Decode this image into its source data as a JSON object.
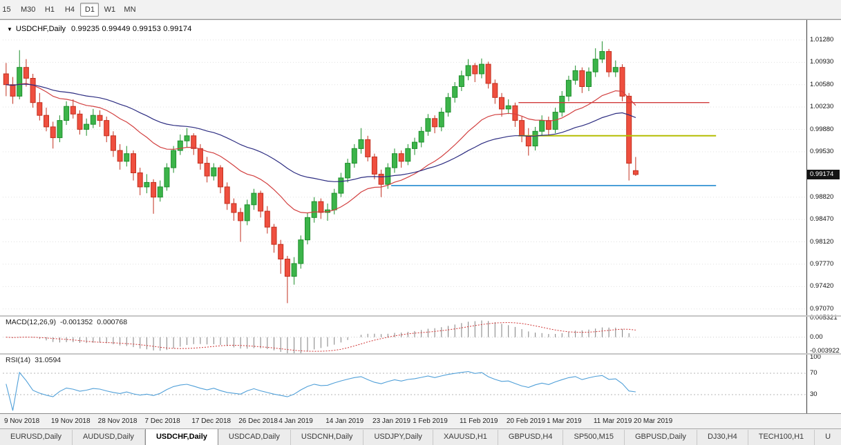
{
  "toolbar": {
    "timeframes": [
      "15",
      "M30",
      "H1",
      "H4",
      "D1",
      "W1",
      "MN"
    ],
    "active_timeframe": "D1"
  },
  "chart": {
    "title_symbol": "USDCHF,Daily",
    "ohlc_text": "0.99235 0.99449 0.99153 0.99174",
    "price_axis": {
      "current": "0.99174",
      "labels": [
        "1.01280",
        "1.00930",
        "1.00580",
        "1.00230",
        "0.99880",
        "0.99530",
        "0.98820",
        "0.98470",
        "0.98120",
        "0.97770",
        "0.97420",
        "0.97070"
      ]
    }
  },
  "chart_data": {
    "type": "candlestick",
    "symbol": "USDCHF",
    "period": "Daily",
    "visible_slots": 120,
    "y_axis": {
      "min": 0.9697,
      "max": 1.0156
    },
    "x_labels": [
      {
        "slot": 0,
        "label": "9 Nov 2018"
      },
      {
        "slot": 7,
        "label": "19 Nov 2018"
      },
      {
        "slot": 14,
        "label": "28 Nov 2018"
      },
      {
        "slot": 21,
        "label": "7 Dec 2018"
      },
      {
        "slot": 28,
        "label": "17 Dec 2018"
      },
      {
        "slot": 35,
        "label": "26 Dec 2018"
      },
      {
        "slot": 41,
        "label": "4 Jan 2019"
      },
      {
        "slot": 48,
        "label": "14 Jan 2019"
      },
      {
        "slot": 55,
        "label": "23 Jan 2019"
      },
      {
        "slot": 61,
        "label": "1 Feb 2019"
      },
      {
        "slot": 68,
        "label": "11 Feb 2019"
      },
      {
        "slot": 75,
        "label": "20 Feb 2019"
      },
      {
        "slot": 81,
        "label": "1 Mar 2019"
      },
      {
        "slot": 88,
        "label": "11 Mar 2019"
      },
      {
        "slot": 94,
        "label": "20 Mar 2019"
      }
    ],
    "ohlc": [
      [
        1.0075,
        1.0092,
        1.004,
        1.0058
      ],
      [
        1.0058,
        1.007,
        1.0028,
        1.004
      ],
      [
        1.004,
        1.0112,
        1.0035,
        1.0085
      ],
      [
        1.0085,
        1.0098,
        1.0055,
        1.0068
      ],
      [
        1.0068,
        1.0075,
        1.0022,
        1.003
      ],
      [
        1.003,
        1.0045,
        1.0002,
        1.001
      ],
      [
        1.001,
        1.0022,
        0.9985,
        0.9992
      ],
      [
        0.9992,
        1.0,
        0.9958,
        0.9975
      ],
      [
        0.9975,
        1.001,
        0.9968,
        1.0002
      ],
      [
        1.0002,
        1.0032,
        0.9995,
        1.0024
      ],
      [
        1.0024,
        1.0035,
        1.0005,
        1.0012
      ],
      [
        1.0012,
        1.0018,
        0.998,
        0.9988
      ],
      [
        0.9988,
        1.0005,
        0.9978,
        0.9996
      ],
      [
        0.9996,
        1.002,
        0.999,
        1.001
      ],
      [
        1.001,
        1.0018,
        0.9992,
        1.0002
      ],
      [
        1.0002,
        1.0008,
        0.9968,
        0.9978
      ],
      [
        0.9978,
        0.9985,
        0.9945,
        0.9955
      ],
      [
        0.9955,
        0.9965,
        0.9925,
        0.9938
      ],
      [
        0.9938,
        0.9962,
        0.993,
        0.995
      ],
      [
        0.995,
        0.9955,
        0.9908,
        0.992
      ],
      [
        0.992,
        0.9928,
        0.9885,
        0.9898
      ],
      [
        0.9898,
        0.9918,
        0.9888,
        0.9905
      ],
      [
        0.9905,
        0.991,
        0.9856,
        0.9882
      ],
      [
        0.9882,
        0.9908,
        0.9875,
        0.9898
      ],
      [
        0.9898,
        0.9935,
        0.9892,
        0.9928
      ],
      [
        0.9928,
        0.9962,
        0.992,
        0.9955
      ],
      [
        0.9955,
        0.998,
        0.9948,
        0.997
      ],
      [
        0.997,
        0.999,
        0.996,
        0.9978
      ],
      [
        0.9978,
        0.9982,
        0.9948,
        0.9958
      ],
      [
        0.9958,
        0.9965,
        0.9925,
        0.9935
      ],
      [
        0.9935,
        0.9945,
        0.9905,
        0.9915
      ],
      [
        0.9915,
        0.9935,
        0.9908,
        0.9928
      ],
      [
        0.9928,
        0.9932,
        0.9888,
        0.9898
      ],
      [
        0.9898,
        0.9905,
        0.9862,
        0.9872
      ],
      [
        0.9872,
        0.988,
        0.9845,
        0.9858
      ],
      [
        0.9858,
        0.9865,
        0.9812,
        0.9845
      ],
      [
        0.9845,
        0.9878,
        0.9838,
        0.987
      ],
      [
        0.987,
        0.9895,
        0.9862,
        0.9888
      ],
      [
        0.9888,
        0.9892,
        0.985,
        0.986
      ],
      [
        0.986,
        0.9868,
        0.9825,
        0.9835
      ],
      [
        0.9835,
        0.984,
        0.9795,
        0.9808
      ],
      [
        0.9808,
        0.9815,
        0.9762,
        0.9785
      ],
      [
        0.9785,
        0.979,
        0.9716,
        0.9758
      ],
      [
        0.9758,
        0.9788,
        0.9745,
        0.9778
      ],
      [
        0.9778,
        0.9822,
        0.977,
        0.9815
      ],
      [
        0.9815,
        0.9858,
        0.9808,
        0.985
      ],
      [
        0.985,
        0.9882,
        0.9842,
        0.9875
      ],
      [
        0.9875,
        0.988,
        0.9848,
        0.9858
      ],
      [
        0.9858,
        0.9872,
        0.9845,
        0.9862
      ],
      [
        0.9862,
        0.9895,
        0.9855,
        0.9888
      ],
      [
        0.9888,
        0.992,
        0.9882,
        0.9912
      ],
      [
        0.9912,
        0.9942,
        0.9905,
        0.9935
      ],
      [
        0.9935,
        0.9965,
        0.9928,
        0.9958
      ],
      [
        0.9958,
        0.999,
        0.995,
        0.9972
      ],
      [
        0.9972,
        0.9978,
        0.9938,
        0.9945
      ],
      [
        0.9945,
        0.995,
        0.991,
        0.9918
      ],
      [
        0.9918,
        0.9925,
        0.9882,
        0.9902
      ],
      [
        0.9902,
        0.9935,
        0.9895,
        0.9928
      ],
      [
        0.9928,
        0.9958,
        0.992,
        0.995
      ],
      [
        0.995,
        0.9955,
        0.9928,
        0.9938
      ],
      [
        0.9938,
        0.9965,
        0.9932,
        0.9958
      ],
      [
        0.9958,
        0.9975,
        0.9948,
        0.9968
      ],
      [
        0.9968,
        0.9992,
        0.996,
        0.9985
      ],
      [
        0.9985,
        1.0012,
        0.9978,
        1.0005
      ],
      [
        1.0005,
        1.001,
        0.9982,
        0.9992
      ],
      [
        0.9992,
        1.0022,
        0.9985,
        1.0015
      ],
      [
        1.0015,
        1.0045,
        1.0008,
        1.0038
      ],
      [
        1.0038,
        1.0062,
        1.003,
        1.0055
      ],
      [
        1.0055,
        1.008,
        1.0048,
        1.0072
      ],
      [
        1.0072,
        1.0098,
        1.0065,
        1.0088
      ],
      [
        1.0088,
        1.0092,
        1.0062,
        1.0075
      ],
      [
        1.0075,
        1.0099,
        1.0068,
        1.009
      ],
      [
        1.009,
        1.0094,
        1.0052,
        1.006
      ],
      [
        1.006,
        1.0066,
        1.0028,
        1.0038
      ],
      [
        1.0038,
        1.0045,
        1.0008,
        1.002
      ],
      [
        1.002,
        1.0035,
        1.0012,
        1.0025
      ],
      [
        1.0025,
        1.003,
        0.9992,
        1.0002
      ],
      [
        1.0002,
        1.0008,
        0.9968,
        0.9978
      ],
      [
        0.9978,
        0.999,
        0.9947,
        0.9962
      ],
      [
        0.9962,
        0.9992,
        0.9955,
        0.9985
      ],
      [
        0.9985,
        1.001,
        0.9978,
        1.0002
      ],
      [
        1.0002,
        1.0008,
        0.9978,
        0.9988
      ],
      [
        0.9988,
        1.0022,
        0.9982,
        1.0015
      ],
      [
        1.0015,
        1.0048,
        1.0008,
        1.004
      ],
      [
        1.004,
        1.0072,
        1.0032,
        1.0065
      ],
      [
        1.0065,
        1.0088,
        1.0058,
        1.008
      ],
      [
        1.008,
        1.0085,
        1.0045,
        1.0055
      ],
      [
        1.0055,
        1.0085,
        1.0048,
        1.0078
      ],
      [
        1.0078,
        1.0115,
        1.007,
        1.0098
      ],
      [
        1.0098,
        1.0126,
        1.0092,
        1.011
      ],
      [
        1.011,
        1.0114,
        1.007,
        1.0078
      ],
      [
        1.0078,
        1.0096,
        1.007,
        1.0085
      ],
      [
        1.0085,
        1.009,
        1.0032,
        1.004
      ],
      [
        1.004,
        1.0045,
        0.9908,
        0.9935
      ],
      [
        0.99235,
        0.99449,
        0.99153,
        0.99174
      ]
    ],
    "overlays": [
      {
        "type": "ema",
        "period": 20,
        "color_key": "ma_fast"
      },
      {
        "type": "ema",
        "period": 45,
        "color_key": "ma_slow"
      }
    ],
    "hlines": [
      {
        "price": 1.003,
        "from": 77,
        "to": 105,
        "color_key": "hline_red",
        "width": 1.4
      },
      {
        "price": 0.9978,
        "from": 77,
        "to": 106,
        "color_key": "hline_yellow",
        "width": 2
      },
      {
        "price": 0.99,
        "from": 58,
        "to": 106,
        "color_key": "hline_blue",
        "width": 2
      }
    ]
  },
  "indicators": {
    "macd": {
      "label": "MACD(12,26,9)",
      "main_value": "-0.001352",
      "signal_value": "0.000768",
      "params": {
        "fast": 12,
        "slow": 26,
        "signal": 9
      },
      "range": [
        -0.0045,
        0.0058
      ],
      "axis": [
        {
          "label": "0.005321",
          "value": 0.005321
        },
        {
          "label": "0.00",
          "value": 0
        },
        {
          "label": "-0.003922",
          "value": -0.003922
        }
      ]
    },
    "rsi": {
      "label": "RSI(14)",
      "value": "31.0594",
      "period": 14,
      "levels": [
        70,
        30
      ],
      "axis": [
        {
          "label": "100",
          "value": 100
        },
        {
          "label": "70",
          "value": 70
        },
        {
          "label": "30",
          "value": 30
        }
      ]
    }
  },
  "tabs": {
    "items": [
      "EURUSD,Daily",
      "AUDUSD,Daily",
      "USDCHF,Daily",
      "USDCAD,Daily",
      "USDCNH,Daily",
      "USDJPY,Daily",
      "XAUUSD,H1",
      "GBPUSD,H4",
      "SP500,M15",
      "GBPUSD,Daily",
      "DJ30,H4",
      "TECH100,H1",
      "U"
    ],
    "active": "USDCHF,Daily"
  },
  "colors": {
    "up_body": "#3cb44a",
    "up_edge": "#1e8f2c",
    "down_body": "#ef4f3f",
    "down_edge": "#c2301f",
    "ma_fast": "#d23f3f",
    "ma_slow": "#2b2b80",
    "grid": "#e0e0e0",
    "macd_hist": "#7f7f7f",
    "macd_signal": "#cf3232",
    "rsi_line": "#4f9fd8",
    "level": "#b5b5b5",
    "hline_red": "#d03a3a",
    "hline_yellow": "#b4bd00",
    "hline_blue": "#4a9fd8",
    "badge_bg": "#141414",
    "badge_fg": "#ffffff"
  }
}
